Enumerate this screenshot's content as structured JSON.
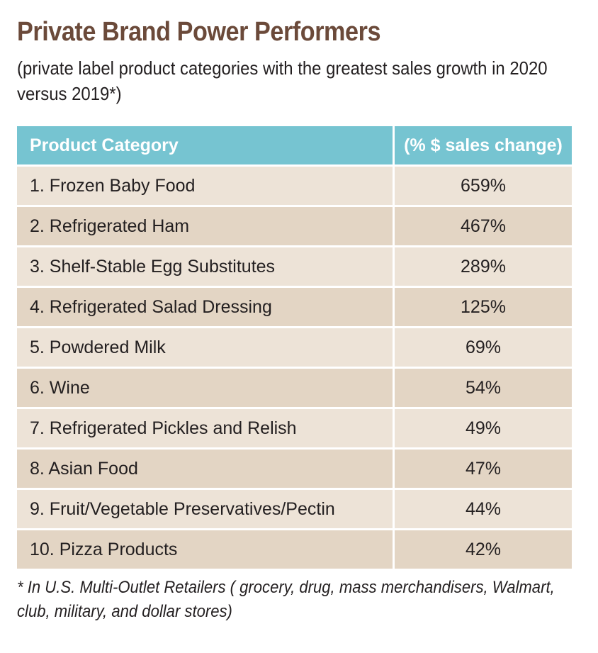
{
  "title": "Private Brand Power Performers",
  "subtitle": "(private label product categories with the greatest sales growth in 2020 versus 2019*)",
  "colors": {
    "title": "#6b4a3a",
    "header": "#76c4d1",
    "row_light": "#ede3d7",
    "row_dark": "#e3d5c4"
  },
  "chart_data": {
    "type": "table",
    "columns": [
      "Product Category",
      "(% $ sales change)"
    ],
    "rows": [
      [
        "1. Frozen Baby Food",
        "659%"
      ],
      [
        "2. Refrigerated Ham",
        "467%"
      ],
      [
        "3. Shelf-Stable Egg Substitutes",
        "289%"
      ],
      [
        "4. Refrigerated Salad Dressing",
        "125%"
      ],
      [
        "5. Powdered Milk",
        "69%"
      ],
      [
        "6. Wine",
        "54%"
      ],
      [
        "7. Refrigerated Pickles and Relish",
        "49%"
      ],
      [
        "8. Asian Food",
        "47%"
      ],
      [
        "9. Fruit/Vegetable Preservatives/Pectin",
        "44%"
      ],
      [
        "10. Pizza Products",
        "42%"
      ]
    ]
  },
  "footnote": "* In U.S. Multi-Outlet Retailers ( grocery, drug, mass merchandisers, Walmart, club, military, and dollar stores)"
}
